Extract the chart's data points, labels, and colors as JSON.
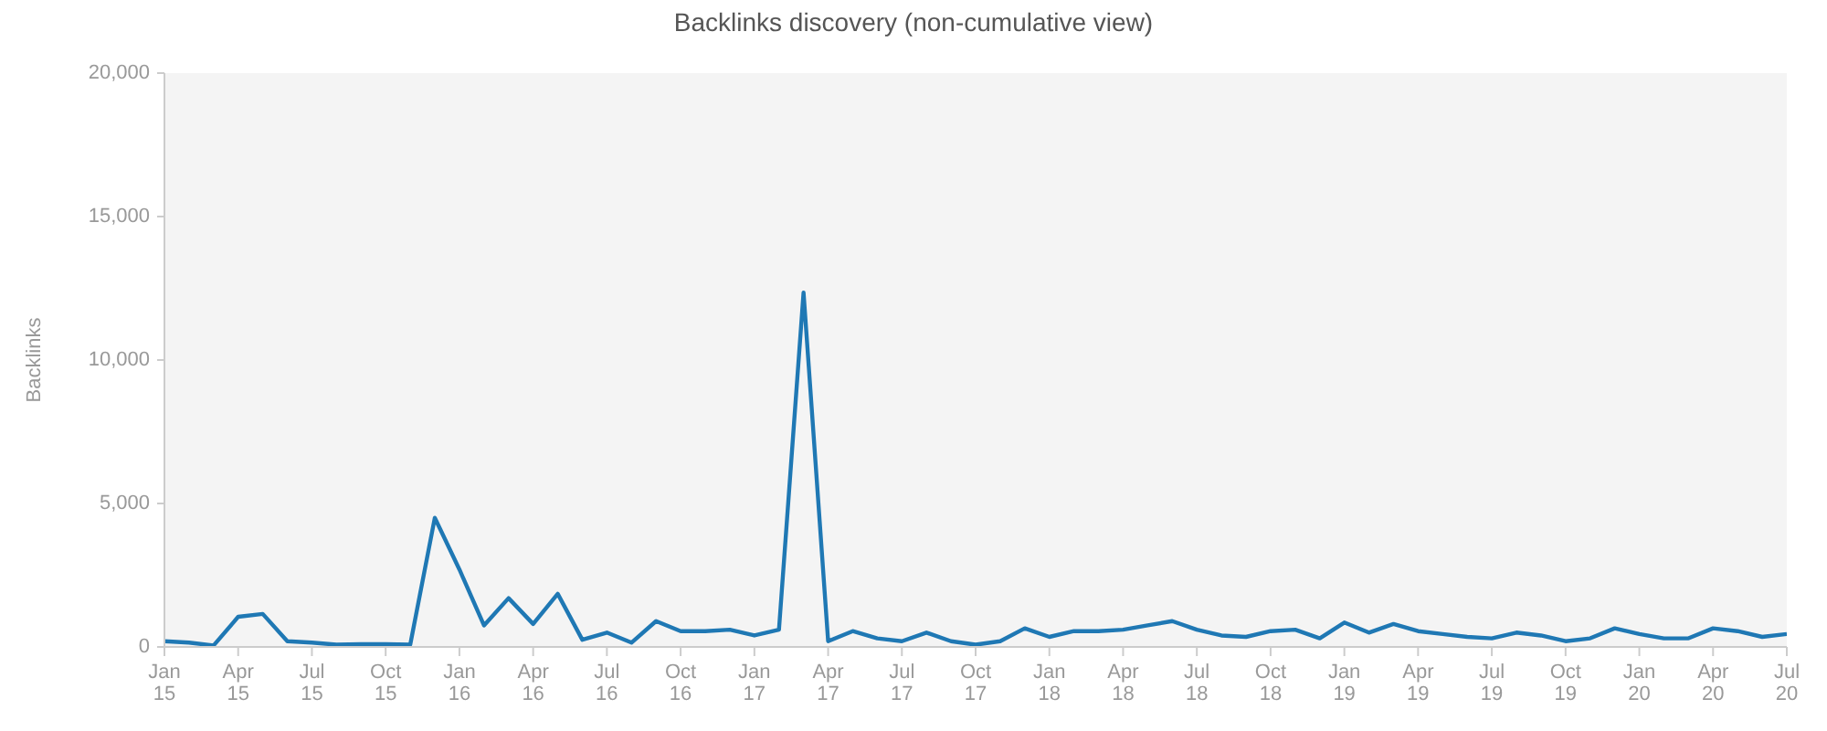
{
  "chart_data": {
    "type": "line",
    "title": "Backlinks discovery (non-cumulative view)",
    "ylabel": "Backlinks",
    "x": [
      "2015-01",
      "2015-02",
      "2015-03",
      "2015-04",
      "2015-05",
      "2015-06",
      "2015-07",
      "2015-08",
      "2015-09",
      "2015-10",
      "2015-11",
      "2015-12",
      "2016-01",
      "2016-02",
      "2016-03",
      "2016-04",
      "2016-05",
      "2016-06",
      "2016-07",
      "2016-08",
      "2016-09",
      "2016-10",
      "2016-11",
      "2016-12",
      "2017-01",
      "2017-02",
      "2017-03",
      "2017-04",
      "2017-05",
      "2017-06",
      "2017-07",
      "2017-08",
      "2017-09",
      "2017-10",
      "2017-11",
      "2017-12",
      "2018-01",
      "2018-02",
      "2018-03",
      "2018-04",
      "2018-05",
      "2018-06",
      "2018-07",
      "2018-08",
      "2018-09",
      "2018-10",
      "2018-11",
      "2018-12",
      "2019-01",
      "2019-02",
      "2019-03",
      "2019-04",
      "2019-05",
      "2019-06",
      "2019-07",
      "2019-08",
      "2019-09",
      "2019-10",
      "2019-11",
      "2019-12",
      "2020-01",
      "2020-02",
      "2020-03",
      "2020-04",
      "2020-05",
      "2020-06",
      "2020-07"
    ],
    "series": [
      {
        "color": "#1f78b4",
        "values": [
          200,
          150,
          50,
          1050,
          1150,
          200,
          150,
          80,
          100,
          100,
          80,
          4500,
          2700,
          750,
          1700,
          800,
          1850,
          250,
          500,
          150,
          900,
          550,
          550,
          600,
          400,
          600,
          12350,
          200,
          550,
          300,
          200,
          500,
          200,
          80,
          200,
          650,
          350,
          550,
          550,
          600,
          750,
          900,
          600,
          400,
          350,
          550,
          600,
          300,
          850,
          500,
          800,
          550,
          450,
          350,
          300,
          500,
          400,
          200,
          300,
          650,
          450,
          300,
          300,
          650,
          550,
          350,
          450
        ]
      }
    ],
    "xlim": [
      "2015-01",
      "2020-07"
    ],
    "xticks": [
      {
        "value": "2015-01",
        "label": "Jan 15"
      },
      {
        "value": "2015-04",
        "label": "Apr 15"
      },
      {
        "value": "2015-07",
        "label": "Jul 15"
      },
      {
        "value": "2015-10",
        "label": "Oct 15"
      },
      {
        "value": "2016-01",
        "label": "Jan 16"
      },
      {
        "value": "2016-04",
        "label": "Apr 16"
      },
      {
        "value": "2016-07",
        "label": "Jul 16"
      },
      {
        "value": "2016-10",
        "label": "Oct 16"
      },
      {
        "value": "2017-01",
        "label": "Jan 17"
      },
      {
        "value": "2017-04",
        "label": "Apr 17"
      },
      {
        "value": "2017-07",
        "label": "Jul 17"
      },
      {
        "value": "2017-10",
        "label": "Oct 17"
      },
      {
        "value": "2018-01",
        "label": "Jan 18"
      },
      {
        "value": "2018-04",
        "label": "Apr 18"
      },
      {
        "value": "2018-07",
        "label": "Jul 18"
      },
      {
        "value": "2018-10",
        "label": "Oct 18"
      },
      {
        "value": "2019-01",
        "label": "Jan 19"
      },
      {
        "value": "2019-04",
        "label": "Apr 19"
      },
      {
        "value": "2019-07",
        "label": "Jul 19"
      },
      {
        "value": "2019-10",
        "label": "Oct 19"
      },
      {
        "value": "2020-01",
        "label": "Jan 20"
      },
      {
        "value": "2020-04",
        "label": "Apr 20"
      },
      {
        "value": "2020-07",
        "label": "Jul 20"
      }
    ],
    "ylim": [
      0,
      20000
    ],
    "yticks": [
      0,
      {
        "value": 5000,
        "label": "5,000"
      },
      {
        "value": 10000,
        "label": "10,000"
      },
      {
        "value": 15000,
        "label": "15,000"
      },
      {
        "value": 20000,
        "label": "20,000"
      }
    ],
    "grid": false,
    "legend": false,
    "marker": "none",
    "line_style": "solid"
  }
}
